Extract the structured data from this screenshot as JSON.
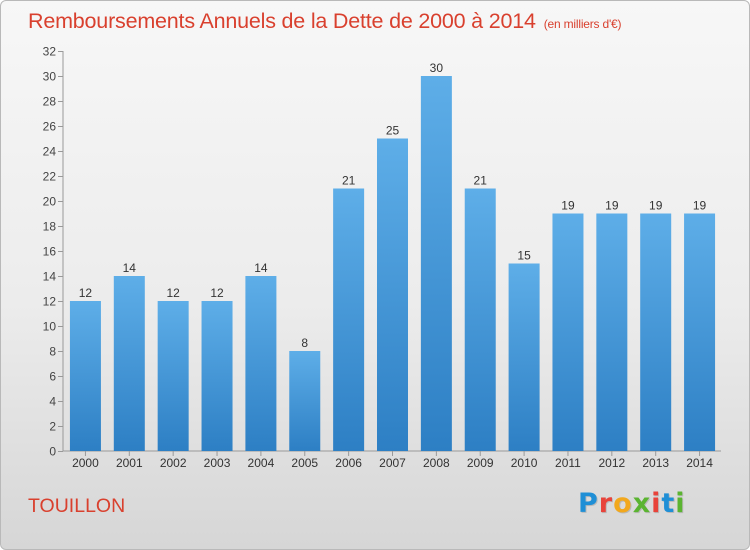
{
  "title": "Remboursements Annuels de la Dette de 2000 à 2014",
  "unit_label": "(en milliers d'€)",
  "location": "TOUILLON",
  "logo": "Proxiti",
  "colors": {
    "title": "#d9402e",
    "bar_top": "#5eaee8",
    "bar_bottom": "#2d7fc4",
    "logo_letters": [
      "#1f8fd6",
      "#e8433a",
      "#f2a81d",
      "#5bb431",
      "#e8433a",
      "#1f8fd6",
      "#5bb431"
    ]
  },
  "chart_data": {
    "type": "bar",
    "title": "Remboursements Annuels de la Dette de 2000 à 2014",
    "subtitle": "(en milliers d'€)",
    "xlabel": "",
    "ylabel": "",
    "categories": [
      "2000",
      "2001",
      "2002",
      "2003",
      "2004",
      "2005",
      "2006",
      "2007",
      "2008",
      "2009",
      "2010",
      "2011",
      "2012",
      "2013",
      "2014"
    ],
    "values": [
      12,
      14,
      12,
      12,
      14,
      8,
      21,
      25,
      30,
      21,
      15,
      19,
      19,
      19,
      19
    ],
    "ylim": [
      0,
      32
    ],
    "yticks": [
      0,
      2,
      4,
      6,
      8,
      10,
      12,
      14,
      16,
      18,
      20,
      22,
      24,
      26,
      28,
      30,
      32
    ],
    "grid": false,
    "legend": "none",
    "data_labels": true
  }
}
